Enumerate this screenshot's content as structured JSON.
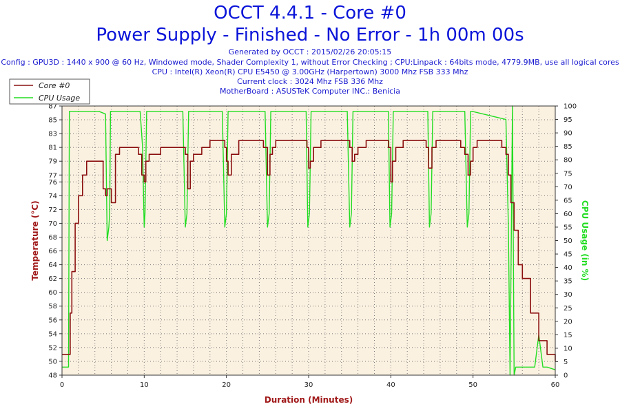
{
  "header": {
    "title": "OCCT 4.4.1 - Core #0",
    "subtitle": "Power Supply - Finished - No Error - 1h 00m 00s",
    "generated": "Generated by OCCT : 2015/02/26 20:05:15",
    "config": "Config : GPU3D : 1440 x 900 @ 60 Hz, Windowed mode, Shader Complexity 1, without Error Checking ; CPU:Linpack : 64bits mode, 4779.9MB, use all logical cores",
    "cpu": "CPU : Intel(R) Xeon(R) CPU E5450 @ 3.00GHz (Harpertown) 3000 Mhz FSB 333 Mhz",
    "clock": "Current clock : 3024 Mhz FSB 336 Mhz",
    "motherboard": "MotherBoard : ASUSTeK Computer INC.: Benicia"
  },
  "colors": {
    "temperature": "#8b1010",
    "cpu_usage": "#22dd22",
    "plot_bg": "#fbf1e1",
    "title": "#0a14d8",
    "axis_label": "#a01818"
  },
  "chart_data": {
    "type": "line",
    "xlabel": "Duration (Minutes)",
    "ylabel": "Temperature (°C)",
    "y2label": "CPU Usage (in %)",
    "xlim": [
      0,
      60
    ],
    "ylim": [
      48,
      87
    ],
    "y2lim": [
      0,
      100
    ],
    "xticks": [
      0,
      10,
      20,
      30,
      40,
      50,
      60
    ],
    "yticks": [
      48,
      50,
      52,
      54,
      56,
      58,
      60,
      62,
      64,
      66,
      68,
      70,
      72,
      74,
      76,
      77,
      79,
      81,
      83,
      85,
      87
    ],
    "ytick_labels": [
      "48",
      "50",
      "52",
      "54",
      "56",
      "58",
      "60",
      "62",
      "64",
      "66",
      "68",
      "70",
      "72",
      "74",
      "76",
      "77",
      "79",
      "81",
      "83",
      "85",
      "87"
    ],
    "y2ticks": [
      0,
      5,
      10,
      15,
      20,
      25,
      30,
      35,
      40,
      45,
      50,
      55,
      60,
      65,
      70,
      75,
      80,
      85,
      90,
      95,
      100
    ],
    "grid": true,
    "legend": "top-left",
    "series": [
      {
        "name": "Core #0",
        "axis": "left",
        "x": [
          0,
          0.3,
          0.8,
          1.0,
          1.2,
          1.6,
          2.0,
          2.5,
          3.0,
          3.5,
          4.5,
          5.0,
          5.3,
          5.5,
          6.0,
          6.5,
          7.0,
          7.5,
          8.5,
          9.3,
          9.7,
          10.0,
          10.2,
          10.6,
          11.0,
          12.0,
          13.0,
          14.0,
          15.0,
          15.3,
          15.6,
          16.0,
          17.0,
          18.0,
          19.0,
          19.8,
          20.0,
          20.2,
          20.6,
          21.5,
          22.5,
          23.5,
          24.5,
          25.0,
          25.3,
          25.6,
          26.0,
          27.0,
          28.0,
          29.0,
          29.8,
          30.0,
          30.2,
          30.6,
          31.5,
          32.5,
          33.5,
          34.5,
          35.0,
          35.3,
          35.6,
          36.0,
          37.0,
          38.0,
          39.0,
          39.7,
          40.0,
          40.2,
          40.6,
          41.5,
          42.5,
          43.5,
          44.3,
          44.6,
          45.0,
          45.5,
          46.5,
          47.5,
          48.5,
          49.0,
          49.4,
          49.7,
          50.0,
          50.5,
          51.5,
          52.5,
          53.5,
          54.0,
          54.3,
          54.6,
          55.0,
          55.5,
          56.0,
          57.0,
          58.0,
          59.0,
          60.0
        ],
        "values": [
          51,
          51,
          51,
          57,
          63,
          70,
          74,
          77,
          79,
          79,
          79,
          75,
          74,
          75,
          73,
          80,
          81,
          81,
          81,
          80,
          77,
          76,
          79,
          80,
          80,
          81,
          81,
          81,
          80,
          75,
          79,
          80,
          81,
          82,
          82,
          81,
          79,
          77,
          80,
          82,
          82,
          82,
          81,
          77,
          80,
          81,
          82,
          82,
          82,
          82,
          81,
          78,
          79,
          81,
          82,
          82,
          82,
          82,
          81,
          79,
          80,
          81,
          82,
          82,
          82,
          81,
          76,
          79,
          81,
          82,
          82,
          82,
          81,
          78,
          81,
          82,
          82,
          82,
          81,
          80,
          77,
          79,
          81,
          82,
          82,
          82,
          81,
          80,
          77,
          73,
          69,
          64,
          62,
          57,
          53,
          51,
          50
        ]
      },
      {
        "name": "CPU Usage",
        "axis": "right",
        "x": [
          0,
          0.8,
          0.9,
          1.1,
          1.3,
          4.5,
          5.3,
          5.5,
          5.7,
          5.8,
          5.9,
          6.1,
          9.5,
          9.8,
          10.0,
          10.1,
          10.3,
          10.5,
          14.7,
          15.0,
          15.2,
          15.4,
          15.6,
          19.5,
          19.8,
          20.0,
          20.2,
          20.4,
          24.7,
          25.0,
          25.2,
          25.4,
          25.6,
          29.7,
          29.9,
          30.1,
          30.3,
          34.7,
          35.0,
          35.2,
          35.4,
          35.6,
          39.7,
          39.9,
          40.1,
          40.3,
          44.5,
          44.7,
          44.9,
          45.1,
          49.0,
          49.3,
          49.5,
          49.7,
          49.9,
          54.0,
          54.3,
          54.5,
          54.8,
          55.0,
          55.2,
          55.4,
          55.6,
          57.5,
          58.0,
          58.5,
          59.0,
          60.0
        ],
        "values": [
          3,
          3,
          98,
          98,
          98,
          98,
          97,
          50,
          55,
          60,
          98,
          98,
          98,
          85,
          55,
          60,
          98,
          98,
          98,
          55,
          60,
          98,
          98,
          98,
          55,
          60,
          98,
          98,
          98,
          55,
          60,
          98,
          98,
          98,
          55,
          60,
          98,
          98,
          55,
          60,
          98,
          98,
          98,
          55,
          60,
          98,
          98,
          55,
          60,
          98,
          98,
          55,
          60,
          98,
          98,
          95,
          55,
          0,
          100,
          0,
          3,
          3,
          3,
          3,
          15,
          3,
          3,
          2
        ]
      }
    ]
  }
}
